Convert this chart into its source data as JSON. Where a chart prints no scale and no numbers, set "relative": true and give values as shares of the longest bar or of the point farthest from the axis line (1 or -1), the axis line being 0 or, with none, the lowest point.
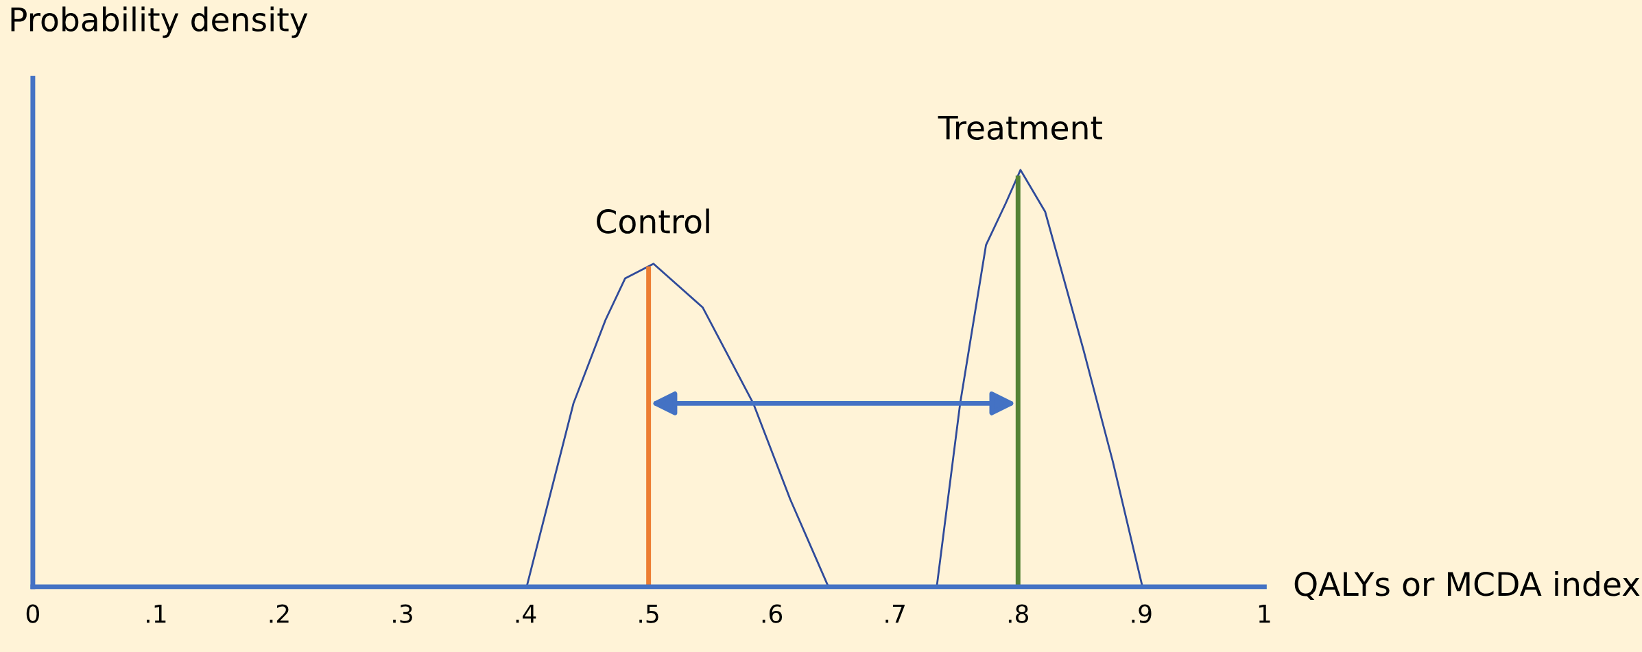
{
  "chart_data": {
    "type": "line",
    "relative": true,
    "ylabel": "Probability density",
    "xlabel": "QALYs or MCDA index",
    "xlim": [
      0,
      1
    ],
    "xticks": [
      0,
      {
        "value": 0.1,
        "label": ".1"
      },
      {
        "value": 0.2,
        "label": ".2"
      },
      {
        "value": 0.3,
        "label": ".3"
      },
      {
        "value": 0.4,
        "label": ".4"
      },
      {
        "value": 0.5,
        "label": ".5"
      },
      {
        "value": 0.6,
        "label": ".6"
      },
      {
        "value": 0.7,
        "label": ".7"
      },
      {
        "value": 0.8,
        "label": ".8"
      },
      {
        "value": 0.9,
        "label": ".9"
      },
      1
    ],
    "series": [
      {
        "name": "Control",
        "color": "#2f4a9a",
        "x": [
          0.401,
          0.439,
          0.465,
          0.481,
          0.504,
          0.544,
          0.585,
          0.615,
          0.646
        ],
        "values": [
          0,
          0.44,
          0.64,
          0.74,
          0.775,
          0.67,
          0.44,
          0.21,
          0
        ]
      },
      {
        "name": "Treatment",
        "color": "#2f4a9a",
        "x": [
          0.734,
          0.753,
          0.774,
          0.79,
          0.802,
          0.822,
          0.853,
          0.877,
          0.901
        ],
        "values": [
          0,
          0.44,
          0.82,
          0.92,
          1,
          0.9,
          0.57,
          0.3,
          0
        ]
      }
    ],
    "ref_lines": [
      {
        "axis": "x",
        "value": 0.5,
        "color": "#ed7d31"
      },
      {
        "axis": "x",
        "value": 0.8,
        "color": "#548235"
      }
    ]
  }
}
